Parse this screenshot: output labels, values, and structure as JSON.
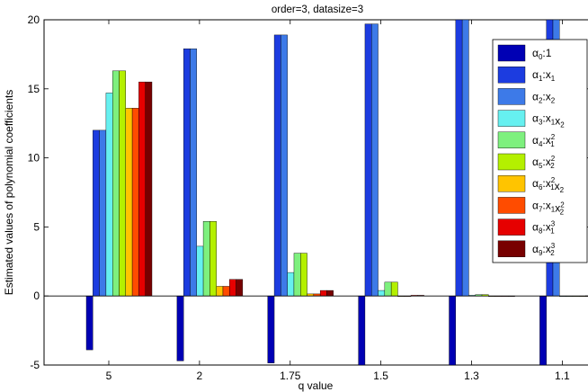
{
  "chart_data": {
    "type": "bar",
    "title": "order=3, datasize=3",
    "xlabel": "q value",
    "ylabel": "Estimated values of polynomial coefficients",
    "categories": [
      "5",
      "2",
      "1.75",
      "1.5",
      "1.3",
      "1.1"
    ],
    "ylim": [
      -5,
      20
    ],
    "yticks": [
      "-5",
      "0",
      "5",
      "10",
      "15",
      "20"
    ],
    "grid": false,
    "legend_position": "top-right",
    "series": [
      {
        "name": "α0:1",
        "label_main": "α",
        "sub1": "0",
        "label_rest": ":1",
        "color": "#0000b4",
        "values": [
          -3.9,
          -4.7,
          -4.85,
          -5.0,
          -5.0,
          -5.0
        ]
      },
      {
        "name": "α1:x1",
        "label_main": "α",
        "sub1": "1",
        "label_rest": ":x",
        "sub2": "1",
        "color": "#1c3ce0",
        "values": [
          12.0,
          17.9,
          18.9,
          19.7,
          20.0,
          20.0
        ]
      },
      {
        "name": "α2:x2",
        "label_main": "α",
        "sub1": "2",
        "label_rest": ":x",
        "sub2": "2",
        "color": "#3d7ae8",
        "values": [
          12.0,
          17.9,
          18.9,
          19.7,
          20.0,
          20.0
        ]
      },
      {
        "name": "α3:x1x2",
        "label_main": "α",
        "sub1": "3",
        "label_rest": ":x",
        "sub2": "1",
        "label_rest2": "x",
        "sub3": "2",
        "color": "#66f0f0",
        "values": [
          14.7,
          3.6,
          1.7,
          0.4,
          0.05,
          0.0
        ]
      },
      {
        "name": "α4:x1^2",
        "label_main": "α",
        "sub1": "4",
        "label_rest": ":x",
        "sub2": "1",
        "sup2": "2",
        "color": "#7ef07e",
        "values": [
          16.3,
          5.4,
          3.1,
          1.0,
          0.1,
          0.0
        ]
      },
      {
        "name": "α5:x2^2",
        "label_main": "α",
        "sub1": "5",
        "label_rest": ":x",
        "sub2": "2",
        "sup2": "2",
        "color": "#b4f000",
        "values": [
          16.3,
          5.4,
          3.1,
          1.0,
          0.1,
          0.0
        ]
      },
      {
        "name": "α6:x1^2x2",
        "label_main": "α",
        "sub1": "6",
        "label_rest": ":x",
        "sub2": "1",
        "sup2": "2",
        "label_rest2": "x",
        "sub3": "2",
        "color": "#ffc400",
        "values": [
          13.6,
          0.7,
          0.15,
          0.0,
          0.0,
          0.0
        ]
      },
      {
        "name": "α7:x1x2^2",
        "label_main": "α",
        "sub1": "7",
        "label_rest": ":x",
        "sub2": "1",
        "label_rest2": "x",
        "sub3": "2",
        "sup3": "2",
        "color": "#ff4c00",
        "values": [
          13.6,
          0.7,
          0.15,
          0.0,
          0.0,
          0.0
        ]
      },
      {
        "name": "α8:x1^3",
        "label_main": "α",
        "sub1": "8",
        "label_rest": ":x",
        "sub2": "1",
        "sup2": "3",
        "color": "#e60000",
        "values": [
          15.5,
          1.2,
          0.4,
          0.05,
          0.0,
          0.0
        ]
      },
      {
        "name": "α9:x2^3",
        "label_main": "α",
        "sub1": "9",
        "label_rest": ":x",
        "sub2": "2",
        "sup2": "3",
        "color": "#780000",
        "values": [
          15.5,
          1.2,
          0.4,
          0.05,
          0.0,
          0.0
        ]
      }
    ]
  }
}
